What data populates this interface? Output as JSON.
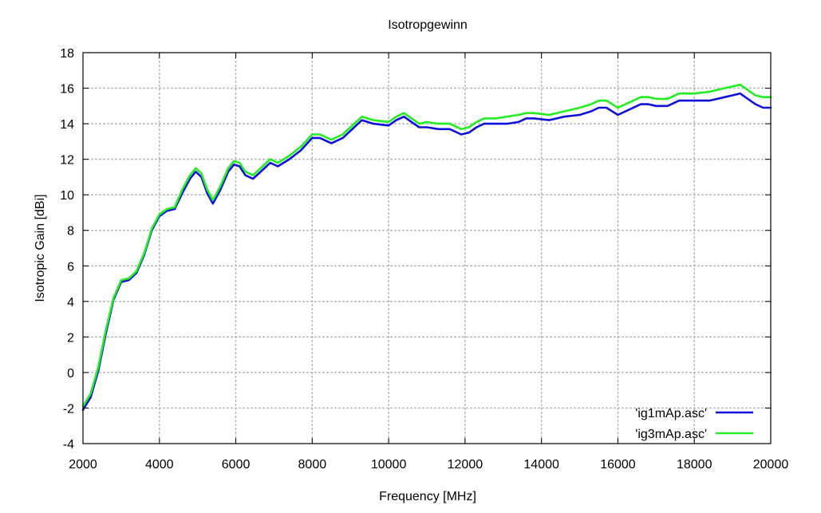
{
  "chart_data": {
    "type": "line",
    "title": "Isotropgewinn",
    "xlabel": "Frequency [MHz]",
    "ylabel": "Isotropic Gain [dBi]",
    "xlim": [
      2000,
      20000
    ],
    "ylim": [
      -4,
      18
    ],
    "grid": true,
    "legend_position": "bottom-right",
    "x_ticks": [
      2000,
      4000,
      6000,
      8000,
      10000,
      12000,
      14000,
      16000,
      18000,
      20000
    ],
    "y_ticks": [
      -4,
      -2,
      0,
      2,
      4,
      6,
      8,
      10,
      12,
      14,
      16,
      18
    ],
    "series": [
      {
        "name": "'ig1mAp.asc'",
        "color": "#1010dd",
        "x": [
          2000,
          2200,
          2400,
          2600,
          2800,
          3000,
          3200,
          3400,
          3600,
          3800,
          4000,
          4200,
          4400,
          4600,
          4800,
          4950,
          5100,
          5250,
          5400,
          5600,
          5800,
          5950,
          6100,
          6250,
          6450,
          6700,
          6900,
          7100,
          7400,
          7700,
          8000,
          8200,
          8500,
          8800,
          9000,
          9300,
          9600,
          10000,
          10200,
          10400,
          10600,
          10800,
          11000,
          11300,
          11600,
          11900,
          12100,
          12300,
          12500,
          12800,
          13100,
          13400,
          13600,
          13800,
          14200,
          14600,
          15000,
          15300,
          15500,
          15700,
          16000,
          16300,
          16600,
          16800,
          17000,
          17300,
          17600,
          18000,
          18400,
          18800,
          19000,
          19200,
          19400,
          19600,
          19800,
          20000
        ],
        "values": [
          -2.1,
          -1.4,
          0.1,
          2.2,
          4.1,
          5.1,
          5.2,
          5.6,
          6.6,
          8.0,
          8.8,
          9.1,
          9.2,
          10.1,
          10.9,
          11.3,
          11.0,
          10.1,
          9.5,
          10.3,
          11.3,
          11.7,
          11.6,
          11.1,
          10.9,
          11.4,
          11.8,
          11.6,
          12.0,
          12.5,
          13.2,
          13.2,
          12.9,
          13.2,
          13.6,
          14.2,
          14.0,
          13.9,
          14.2,
          14.4,
          14.1,
          13.8,
          13.8,
          13.7,
          13.7,
          13.4,
          13.5,
          13.8,
          14.0,
          14.0,
          14.0,
          14.1,
          14.3,
          14.3,
          14.2,
          14.4,
          14.5,
          14.7,
          14.9,
          14.9,
          14.5,
          14.8,
          15.1,
          15.1,
          15.0,
          15.0,
          15.3,
          15.3,
          15.3,
          15.5,
          15.6,
          15.7,
          15.4,
          15.1,
          14.9,
          14.9
        ]
      },
      {
        "name": "'ig3mAp.asc'",
        "color": "#22ee22",
        "x": [
          2000,
          2200,
          2400,
          2600,
          2800,
          3000,
          3200,
          3400,
          3600,
          3800,
          4000,
          4200,
          4400,
          4600,
          4800,
          4950,
          5100,
          5250,
          5400,
          5600,
          5800,
          5950,
          6100,
          6250,
          6450,
          6700,
          6900,
          7100,
          7400,
          7700,
          8000,
          8200,
          8500,
          8800,
          9000,
          9300,
          9600,
          10000,
          10200,
          10400,
          10600,
          10800,
          11000,
          11300,
          11600,
          11900,
          12100,
          12300,
          12500,
          12800,
          13100,
          13400,
          13600,
          13800,
          14200,
          14600,
          15000,
          15300,
          15500,
          15700,
          16000,
          16300,
          16600,
          16800,
          17000,
          17300,
          17600,
          18000,
          18400,
          18800,
          19000,
          19200,
          19400,
          19600,
          19800,
          20000
        ],
        "values": [
          -1.9,
          -1.2,
          0.3,
          2.4,
          4.2,
          5.2,
          5.3,
          5.7,
          6.7,
          8.1,
          8.9,
          9.2,
          9.3,
          10.3,
          11.1,
          11.5,
          11.2,
          10.3,
          9.7,
          10.5,
          11.5,
          11.9,
          11.8,
          11.3,
          11.1,
          11.6,
          12.0,
          11.8,
          12.2,
          12.7,
          13.4,
          13.4,
          13.1,
          13.4,
          13.8,
          14.4,
          14.2,
          14.1,
          14.4,
          14.6,
          14.3,
          14.0,
          14.1,
          14.0,
          14.0,
          13.7,
          13.8,
          14.1,
          14.3,
          14.3,
          14.4,
          14.5,
          14.6,
          14.6,
          14.5,
          14.7,
          14.9,
          15.1,
          15.3,
          15.3,
          14.9,
          15.2,
          15.5,
          15.5,
          15.4,
          15.4,
          15.7,
          15.7,
          15.8,
          16.0,
          16.1,
          16.2,
          15.9,
          15.6,
          15.5,
          15.5
        ]
      }
    ]
  }
}
